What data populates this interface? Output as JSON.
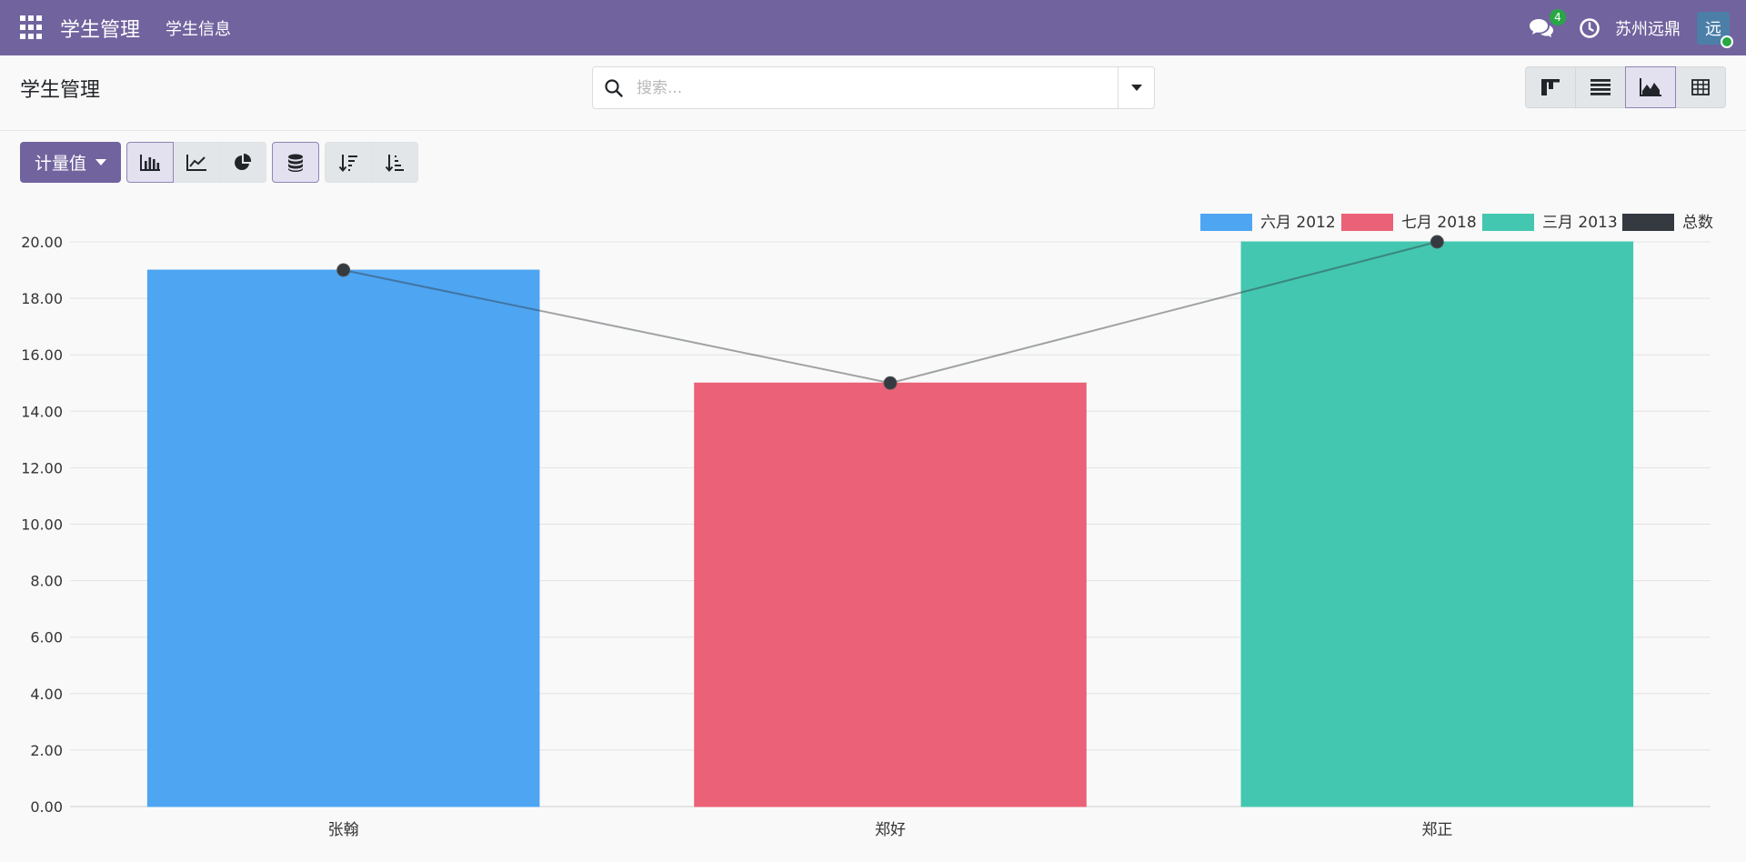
{
  "navbar": {
    "brand": "学生管理",
    "menu": [
      "学生信息"
    ],
    "message_count": "4",
    "company": "苏州远鼎",
    "avatar_text": "远",
    "icons": {
      "apps": "apps-grid-icon",
      "chat": "chat-icon",
      "clock": "clock-icon"
    },
    "colors": {
      "background": "#71639e",
      "badge": "#28a745"
    }
  },
  "control_panel": {
    "title": "学生管理",
    "search": {
      "placeholder": "搜索...",
      "value": ""
    },
    "views": [
      {
        "name": "kanban",
        "icon": "kanban-icon",
        "active": false
      },
      {
        "name": "list",
        "icon": "list-icon",
        "active": false
      },
      {
        "name": "graph",
        "icon": "area-chart-icon",
        "active": true
      },
      {
        "name": "pivot",
        "icon": "table-icon",
        "active": false
      }
    ]
  },
  "toolbar": {
    "measure_label": "计量值",
    "chart_types": [
      {
        "name": "bar",
        "icon": "bar-chart-icon",
        "active": true
      },
      {
        "name": "line",
        "icon": "line-chart-icon",
        "active": false
      },
      {
        "name": "pie",
        "icon": "pie-chart-icon",
        "active": false
      }
    ],
    "stacked": {
      "icon": "database-icon",
      "active": true
    },
    "sort": [
      {
        "icon": "sort-descending-icon"
      },
      {
        "icon": "sort-ascending-icon"
      }
    ]
  },
  "chart_data": {
    "type": "bar",
    "categories": [
      "张翰",
      "郑好",
      "郑正"
    ],
    "series": [
      {
        "name": "六月 2012",
        "color": "#4ea5f2",
        "values": [
          19,
          null,
          null
        ]
      },
      {
        "name": "七月 2018",
        "color": "#eb6177",
        "values": [
          null,
          15,
          null
        ]
      },
      {
        "name": "三月 2013",
        "color": "#43c7b0",
        "values": [
          null,
          null,
          20
        ]
      },
      {
        "name": "总数",
        "color": "#343a40",
        "type": "line",
        "values": [
          19,
          15,
          20
        ]
      }
    ],
    "ylim": [
      0,
      20
    ],
    "yticks": [
      "0.00",
      "2.00",
      "4.00",
      "6.00",
      "8.00",
      "10.00",
      "12.00",
      "14.00",
      "16.00",
      "18.00",
      "20.00"
    ],
    "grid": true,
    "legend": "top-right"
  }
}
